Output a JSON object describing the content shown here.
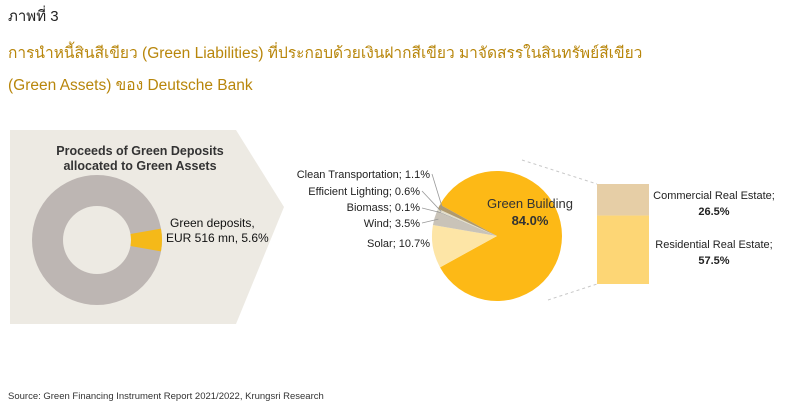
{
  "figure_label": "ภาพที่ 3",
  "title_line1": "การนำหนี้สินสีเขียว (Green Liabilities) ที่ประกอบด้วยเงินฝากสีเขียว มาจัดสรรในสินทรัพย์สีเขียว",
  "title_line2": "(Green Assets) ของ Deutsche Bank",
  "source": "Source: Green Financing Instrument Report 2021/2022, Krungsri Research",
  "colors": {
    "accent": "#F5B919",
    "title": "#B8860B",
    "panel": "#EDEAE3",
    "donut_rest": "#BDB6B3"
  },
  "chart_data": [
    {
      "type": "pie",
      "subtype": "donut",
      "title_lines": [
        "Proceeds of Green Deposits",
        "allocated to Green Assets"
      ],
      "slices": [
        {
          "label": "",
          "value": 94.4,
          "color": "#BDB6B3"
        },
        {
          "label": "Green deposits, EUR 516 mn, 5.6%",
          "label_lines": [
            "Green deposits,",
            "EUR 516 mn, 5.6%"
          ],
          "value": 5.6,
          "color": "#F5B919"
        }
      ]
    },
    {
      "type": "pie",
      "slices": [
        {
          "label": "Green Building",
          "value": 84.0,
          "value_label": "84.0%",
          "color": "#FDB916"
        },
        {
          "label": "Solar; 10.7%",
          "value": 10.7,
          "color": "#FDE5A6"
        },
        {
          "label": "Wind; 3.5%",
          "value": 3.5,
          "color": "#C9C3B8"
        },
        {
          "label": "Biomass; 0.1%",
          "value": 0.1,
          "color": "#8C8C8C"
        },
        {
          "label": "Efficient Lighting; 0.6%",
          "value": 0.6,
          "color": "#E3DECB"
        },
        {
          "label": "Clean Transportation; 1.1%",
          "value": 1.1,
          "color": "#B09A6E"
        }
      ]
    },
    {
      "type": "bar",
      "stacked": true,
      "segments": [
        {
          "label": "Commercial Real Estate;",
          "value": 26.5,
          "value_label": "26.5%",
          "color": "#E6CEA6"
        },
        {
          "label": "Residential Real Estate;",
          "value": 57.5,
          "value_label": "57.5%",
          "color": "#FDD675"
        }
      ]
    }
  ]
}
